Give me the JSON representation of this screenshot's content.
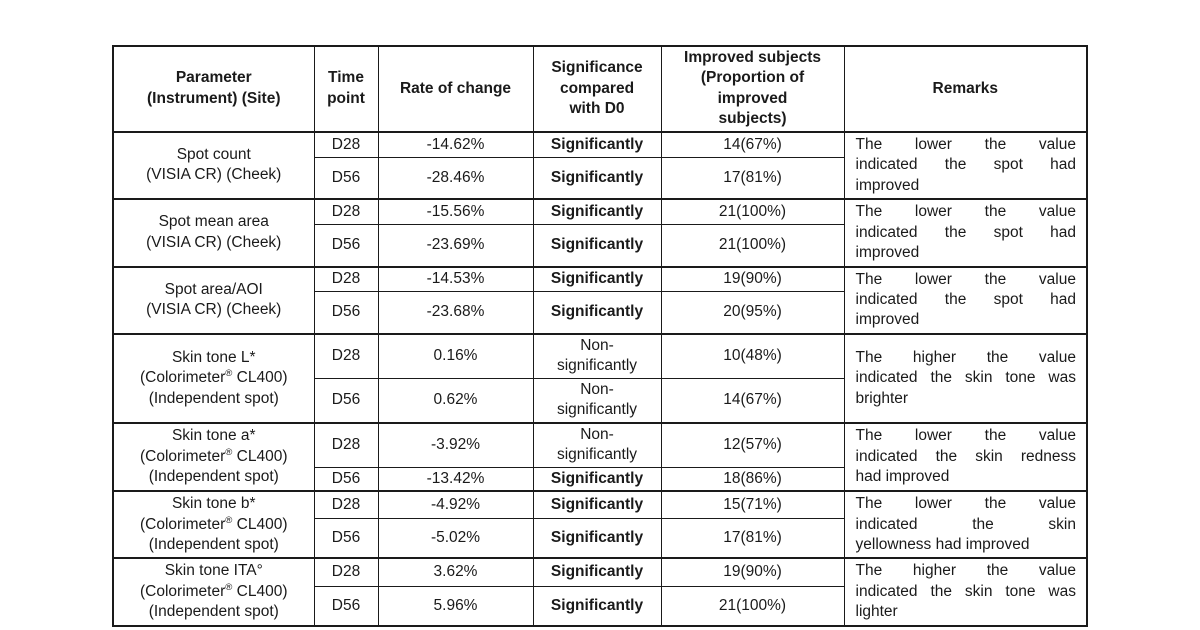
{
  "table": {
    "headers": {
      "parameter": "Parameter\n(Instrument) (Site)",
      "time_point": "Time\npoint",
      "rate_of_change": "Rate of change",
      "significance": "Significance\ncompared\nwith D0",
      "improved_subjects": "Improved subjects\n(Proportion of\nimproved\nsubjects)",
      "remarks": "Remarks"
    },
    "groups": [
      {
        "parameter": "Spot count\n(VISIA CR) (Cheek)",
        "rows": [
          {
            "time_point": "D28",
            "rate_of_change": "-14.62%",
            "significance": "Significantly",
            "improved_subjects": "14(67%)"
          },
          {
            "time_point": "D56",
            "rate_of_change": "-28.46%",
            "significance": "Significantly",
            "improved_subjects": "17(81%)"
          }
        ],
        "remark_lines": [
          "The lower the value",
          "indicated the spot had",
          "improved"
        ]
      },
      {
        "parameter": "Spot mean area\n(VISIA CR) (Cheek)",
        "rows": [
          {
            "time_point": "D28",
            "rate_of_change": "-15.56%",
            "significance": "Significantly",
            "improved_subjects": "21(100%)"
          },
          {
            "time_point": "D56",
            "rate_of_change": "-23.69%",
            "significance": "Significantly",
            "improved_subjects": "21(100%)"
          }
        ],
        "remark_lines": [
          "The lower the value",
          "indicated the spot had",
          "improved"
        ]
      },
      {
        "parameter": "Spot area/AOI\n(VISIA CR) (Cheek)",
        "rows": [
          {
            "time_point": "D28",
            "rate_of_change": "-14.53%",
            "significance": "Significantly",
            "improved_subjects": "19(90%)"
          },
          {
            "time_point": "D56",
            "rate_of_change": "-23.68%",
            "significance": "Significantly",
            "improved_subjects": "20(95%)"
          }
        ],
        "remark_lines": [
          "The lower the value",
          "indicated the spot had",
          "improved"
        ]
      },
      {
        "parameter": "Skin tone L*\n(Colorimeter® CL400)\n(Independent spot)",
        "rows": [
          {
            "time_point": "D28",
            "rate_of_change": "0.16%",
            "significance": "Non-\nsignificantly",
            "improved_subjects": "10(48%)"
          },
          {
            "time_point": "D56",
            "rate_of_change": "0.62%",
            "significance": "Non-\nsignificantly",
            "improved_subjects": "14(67%)"
          }
        ],
        "remark_lines": [
          "The higher the value",
          "indicated the skin tone was",
          "brighter"
        ]
      },
      {
        "parameter": "Skin tone a*\n(Colorimeter® CL400)\n(Independent spot)",
        "rows": [
          {
            "time_point": "D28",
            "rate_of_change": "-3.92%",
            "significance": "Non-\nsignificantly",
            "improved_subjects": "12(57%)"
          },
          {
            "time_point": "D56",
            "rate_of_change": "-13.42%",
            "significance": "Significantly",
            "improved_subjects": "18(86%)"
          }
        ],
        "remark_lines": [
          "The lower the value",
          "indicated the skin redness",
          "had improved"
        ]
      },
      {
        "parameter": "Skin tone b*\n(Colorimeter® CL400)\n(Independent spot)",
        "rows": [
          {
            "time_point": "D28",
            "rate_of_change": "-4.92%",
            "significance": "Significantly",
            "improved_subjects": "15(71%)"
          },
          {
            "time_point": "D56",
            "rate_of_change": "-5.02%",
            "significance": "Significantly",
            "improved_subjects": "17(81%)"
          }
        ],
        "remark_lines": [
          "The lower the value",
          "indicated the skin",
          "yellowness had improved"
        ]
      },
      {
        "parameter": "Skin tone ITA°\n(Colorimeter® CL400)\n(Independent spot)",
        "rows": [
          {
            "time_point": "D28",
            "rate_of_change": "3.62%",
            "significance": "Significantly",
            "improved_subjects": "19(90%)"
          },
          {
            "time_point": "D56",
            "rate_of_change": "5.96%",
            "significance": "Significantly",
            "improved_subjects": "21(100%)"
          }
        ],
        "remark_lines": [
          "The higher the value",
          "indicated the skin tone was",
          "lighter"
        ]
      }
    ],
    "colors": {
      "text": "#1a1a1a",
      "border": "#1a1a1a",
      "background": "#ffffff"
    }
  }
}
